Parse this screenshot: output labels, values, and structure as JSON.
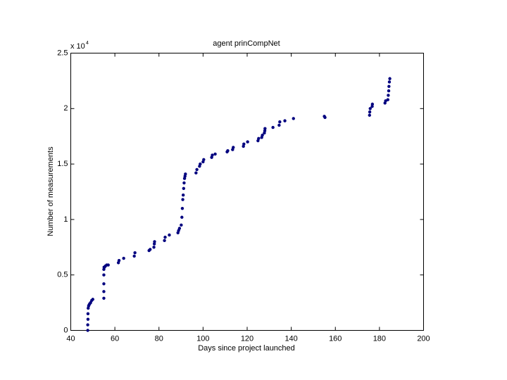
{
  "chart_data": {
    "type": "scatter",
    "title": "agent prinCompNet",
    "x_label": "Days since project launched",
    "y_label": "Number of measurements",
    "y_multiplier": {
      "text": "x 10",
      "exponent": "4"
    },
    "color": "#00007f",
    "x": [
      47.7,
      47.7,
      47.8,
      47.8,
      47.9,
      48.1,
      48.3,
      48.6,
      49,
      49.5,
      50,
      55,
      55,
      55,
      55,
      55,
      55.1,
      55.3,
      55.7,
      56.3,
      57,
      61.6,
      61.9,
      64,
      68.8,
      69.1,
      75.5,
      76,
      77.7,
      77.9,
      78,
      82.5,
      82.8,
      84.7,
      88.6,
      88.9,
      89.3,
      90.1,
      90.4,
      90.6,
      90.8,
      91,
      91.2,
      91.4,
      91.6,
      91.8,
      92,
      96.8,
      97.2,
      98.4,
      98.7,
      100,
      100.3,
      103.9,
      104.2,
      105.5,
      110.9,
      111.2,
      113.4,
      113.7,
      118.3,
      118.5,
      120.2,
      124.9,
      125.2,
      126.6,
      126.9,
      127.8,
      128,
      128.1,
      131.7,
      134.5,
      134.8,
      137.1,
      141,
      155,
      155.3,
      175.5,
      175.6,
      175.8,
      176.7,
      176.8,
      182.5,
      182.8,
      183.8,
      184,
      184.2,
      184.3,
      184.5,
      184.7
    ],
    "y": [
      0,
      0.05,
      0.1,
      0.15,
      0.2,
      0.22,
      0.23,
      0.24,
      0.25,
      0.27,
      0.28,
      0.29,
      0.35,
      0.42,
      0.5,
      0.55,
      0.57,
      0.57,
      0.58,
      0.59,
      0.59,
      0.61,
      0.63,
      0.65,
      0.67,
      0.7,
      0.72,
      0.73,
      0.75,
      0.78,
      0.8,
      0.81,
      0.84,
      0.86,
      0.88,
      0.9,
      0.92,
      0.95,
      1.02,
      1.1,
      1.18,
      1.22,
      1.28,
      1.33,
      1.37,
      1.39,
      1.41,
      1.42,
      1.45,
      1.48,
      1.5,
      1.52,
      1.54,
      1.56,
      1.58,
      1.59,
      1.61,
      1.62,
      1.63,
      1.65,
      1.66,
      1.68,
      1.7,
      1.71,
      1.73,
      1.74,
      1.76,
      1.78,
      1.8,
      1.82,
      1.83,
      1.85,
      1.88,
      1.89,
      1.91,
      1.93,
      1.92,
      1.94,
      1.97,
      2.0,
      2.02,
      2.04,
      2.05,
      2.07,
      2.08,
      2.12,
      2.16,
      2.2,
      2.24,
      2.27
    ],
    "xlim": [
      40,
      200
    ],
    "xticks": [
      40,
      60,
      80,
      100,
      120,
      140,
      160,
      180,
      200
    ],
    "ylim": [
      0,
      2.5
    ],
    "yticks": [
      0,
      0.5,
      1,
      1.5,
      2,
      2.5
    ],
    "grid": false
  }
}
